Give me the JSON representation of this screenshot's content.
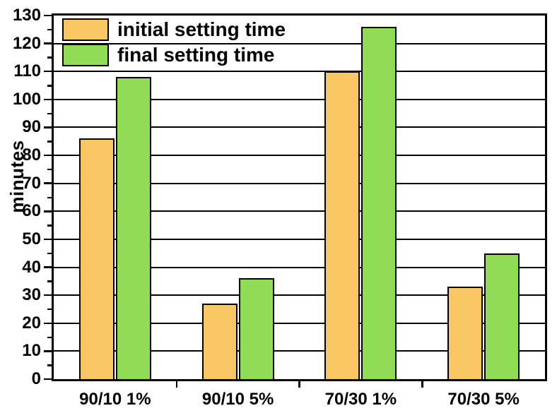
{
  "chart_data": {
    "type": "bar",
    "title": "",
    "xlabel": "",
    "ylabel": "minutes",
    "categories": [
      "90/10 1%",
      "90/10 5%",
      "70/30 1%",
      "70/30 5%"
    ],
    "series": [
      {
        "name": "initial setting time",
        "color": "#FAC664",
        "values": [
          86,
          27,
          110,
          33
        ]
      },
      {
        "name": "final setting time",
        "color": "#90DC55",
        "values": [
          108,
          36,
          126,
          45
        ]
      }
    ],
    "ylim": [
      0,
      130
    ],
    "ytick_step": 10,
    "yminor_step": 5,
    "grid": "horizontal-only",
    "gridline_color": "#000000",
    "axis_color": "#000000",
    "bar_border_color": "#000000",
    "background_color": "#FFFFFF",
    "legend_position": "top-left-inside",
    "legend_transparent": true
  }
}
